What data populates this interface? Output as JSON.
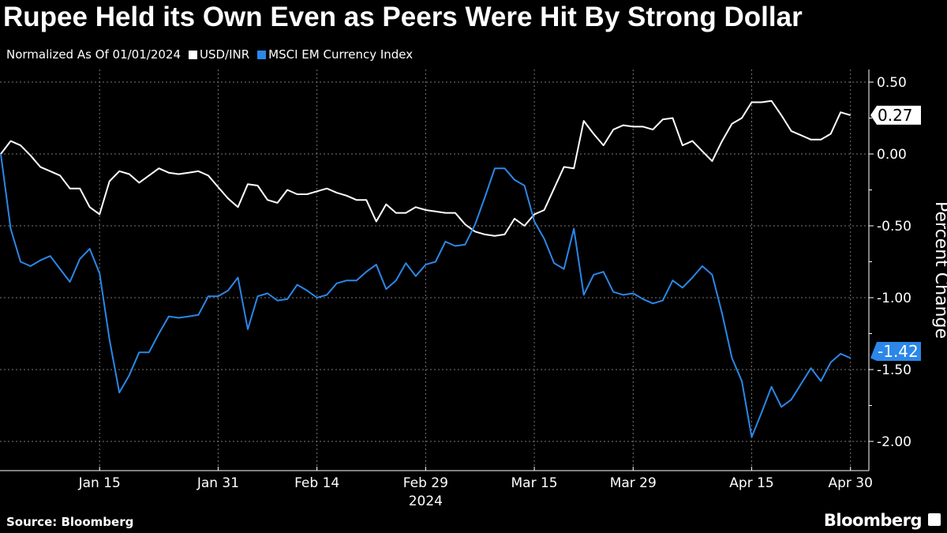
{
  "title": "Rupee Held its Own Even as Peers Were Hit By Strong Dollar",
  "subtitle": "Normalized As Of 01/01/2024",
  "source": "Source: Bloomberg",
  "brand": "Bloomberg",
  "chart_data": {
    "type": "line",
    "title": "Rupee Held its Own Even as Peers Were Hit By Strong Dollar",
    "subtitle": "Normalized As Of 01/01/2024",
    "xlabel": "2024",
    "ylabel": "Percent Change",
    "x_unit": "trading day index from 2024-01-01 (weekdays)",
    "x_ticks": [
      {
        "i": 10,
        "label": "Jan 15"
      },
      {
        "i": 22,
        "label": "Jan 31"
      },
      {
        "i": 32,
        "label": "Feb 14"
      },
      {
        "i": 43,
        "label": "Feb 29"
      },
      {
        "i": 54,
        "label": "Mar 15"
      },
      {
        "i": 64,
        "label": "Mar 29"
      },
      {
        "i": 76,
        "label": "Apr 15"
      },
      {
        "i": 86,
        "label": "Apr 30"
      }
    ],
    "y_ticks": [
      "0.50",
      "0.00",
      "-0.50",
      "-1.00",
      "-1.50",
      "-2.00"
    ],
    "y_tick_values": [
      0.5,
      0,
      -0.5,
      -1,
      -1.5,
      -2
    ],
    "ylim": [
      -2.2,
      0.6
    ],
    "xlim": [
      0,
      88
    ],
    "grid": true,
    "legend_position": "top-left",
    "series": [
      {
        "name": "USD/INR",
        "color": "#ffffff",
        "last_label": "0.27",
        "values": [
          0.0,
          0.09,
          0.06,
          -0.01,
          -0.09,
          -0.12,
          -0.15,
          -0.24,
          -0.24,
          -0.37,
          -0.42,
          -0.19,
          -0.12,
          -0.14,
          -0.2,
          -0.15,
          -0.1,
          -0.13,
          -0.14,
          -0.13,
          -0.12,
          -0.15,
          -0.23,
          -0.31,
          -0.37,
          -0.21,
          -0.22,
          -0.32,
          -0.34,
          -0.25,
          -0.28,
          -0.28,
          -0.26,
          -0.24,
          -0.27,
          -0.29,
          -0.32,
          -0.32,
          -0.47,
          -0.35,
          -0.41,
          -0.41,
          -0.37,
          -0.39,
          -0.4,
          -0.41,
          -0.41,
          -0.49,
          -0.54,
          -0.56,
          -0.57,
          -0.56,
          -0.45,
          -0.5,
          -0.42,
          -0.39,
          -0.24,
          -0.09,
          -0.1,
          0.23,
          0.14,
          0.06,
          0.17,
          0.2,
          0.19,
          0.19,
          0.17,
          0.24,
          0.25,
          0.06,
          0.09,
          0.02,
          -0.05,
          0.09,
          0.21,
          0.25,
          0.36,
          0.36,
          0.37,
          0.27,
          0.16,
          0.13,
          0.1,
          0.1,
          0.14,
          0.29,
          0.27
        ]
      },
      {
        "name": "MSCI EM Currency Index",
        "color": "#2b87e8",
        "last_label": "-1.42",
        "values": [
          0.0,
          -0.52,
          -0.75,
          -0.78,
          -0.74,
          -0.71,
          -0.8,
          -0.89,
          -0.73,
          -0.66,
          -0.83,
          -1.29,
          -1.66,
          -1.54,
          -1.38,
          -1.38,
          -1.25,
          -1.13,
          -1.14,
          -1.13,
          -1.12,
          -0.99,
          -0.99,
          -0.95,
          -0.86,
          -1.22,
          -0.99,
          -0.97,
          -1.02,
          -1.01,
          -0.91,
          -0.95,
          -1.0,
          -0.98,
          -0.9,
          -0.88,
          -0.88,
          -0.82,
          -0.77,
          -0.94,
          -0.88,
          -0.76,
          -0.85,
          -0.77,
          -0.75,
          -0.61,
          -0.64,
          -0.63,
          -0.49,
          -0.3,
          -0.1,
          -0.1,
          -0.18,
          -0.22,
          -0.47,
          -0.59,
          -0.76,
          -0.8,
          -0.52,
          -0.98,
          -0.84,
          -0.82,
          -0.96,
          -0.98,
          -0.97,
          -1.01,
          -1.04,
          -1.02,
          -0.88,
          -0.93,
          -0.86,
          -0.78,
          -0.84,
          -1.11,
          -1.42,
          -1.58,
          -1.97,
          -1.8,
          -1.62,
          -1.76,
          -1.71,
          -1.6,
          -1.49,
          -1.58,
          -1.45,
          -1.39,
          -1.42
        ]
      }
    ]
  }
}
